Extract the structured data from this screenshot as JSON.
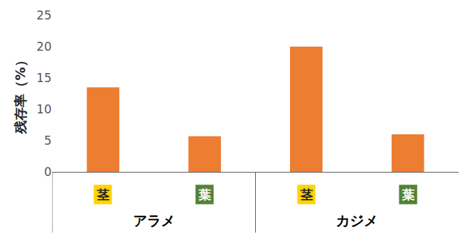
{
  "chart_data": {
    "type": "bar",
    "y_label": "残存率（%）",
    "categories": [
      "茎",
      "葉",
      "茎",
      "葉"
    ],
    "groups": [
      "アラメ",
      "アラメ",
      "カジメ",
      "カジメ"
    ],
    "values": [
      13.5,
      5.7,
      20,
      6
    ],
    "color": "#ed7d31",
    "ylim": [
      0,
      25
    ],
    "yticks": [
      0,
      5,
      10,
      15,
      20,
      25
    ],
    "grid": false
  }
}
